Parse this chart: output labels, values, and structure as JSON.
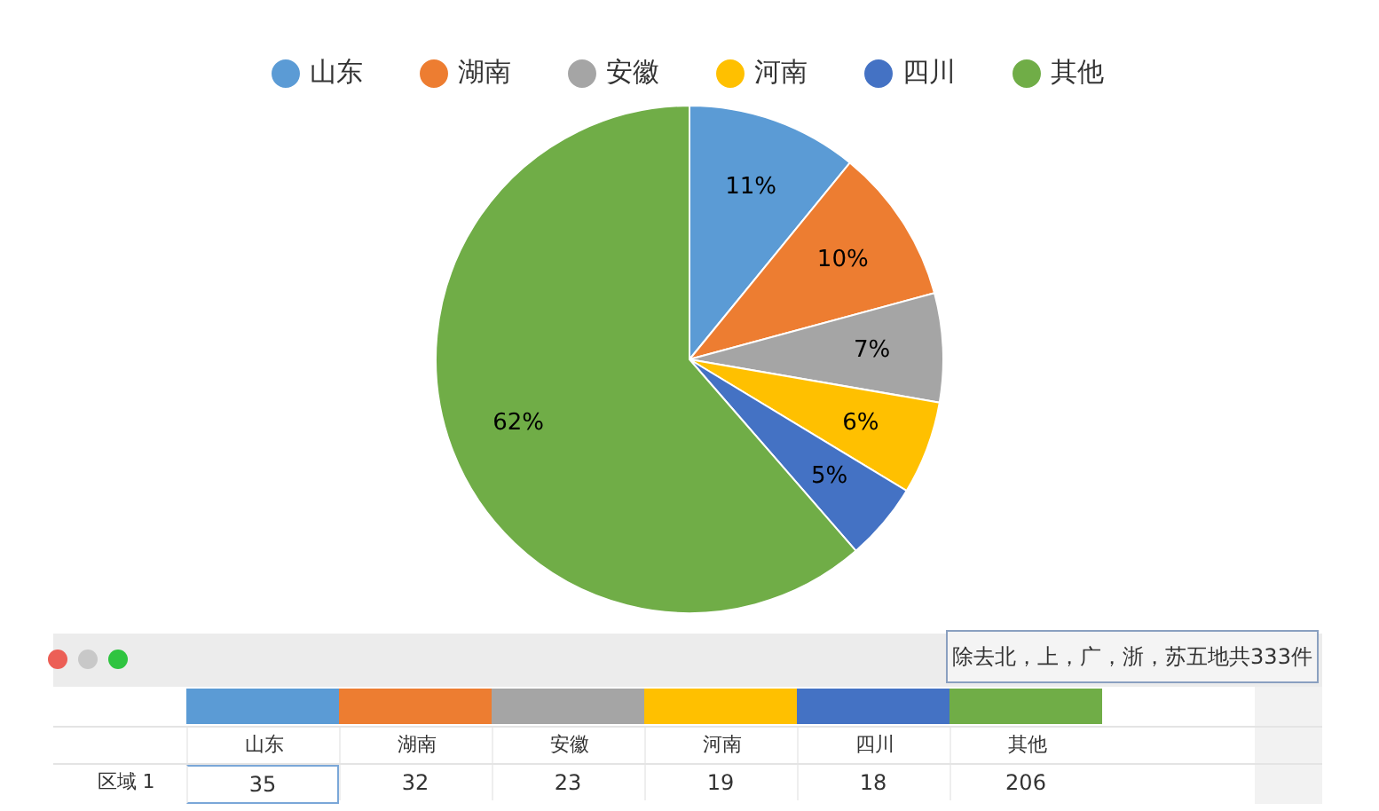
{
  "chart_data": {
    "type": "pie",
    "categories": [
      "山东",
      "湖南",
      "安徽",
      "河南",
      "四川",
      "其他"
    ],
    "values": [
      11,
      10,
      7,
      6,
      5,
      62
    ],
    "colors": [
      "#5b9bd5",
      "#ed7d31",
      "#a5a5a5",
      "#ffc000",
      "#4472c4",
      "#70ad47"
    ],
    "value_labels": [
      "11%",
      "10%",
      "7%",
      "6%",
      "5%",
      "62%"
    ],
    "legend": "top",
    "annotations": [
      "除去北，上，广，浙，苏五地共333件",
      "区域 1",
      "35",
      "32",
      "23",
      "19",
      "18",
      "206"
    ]
  }
}
